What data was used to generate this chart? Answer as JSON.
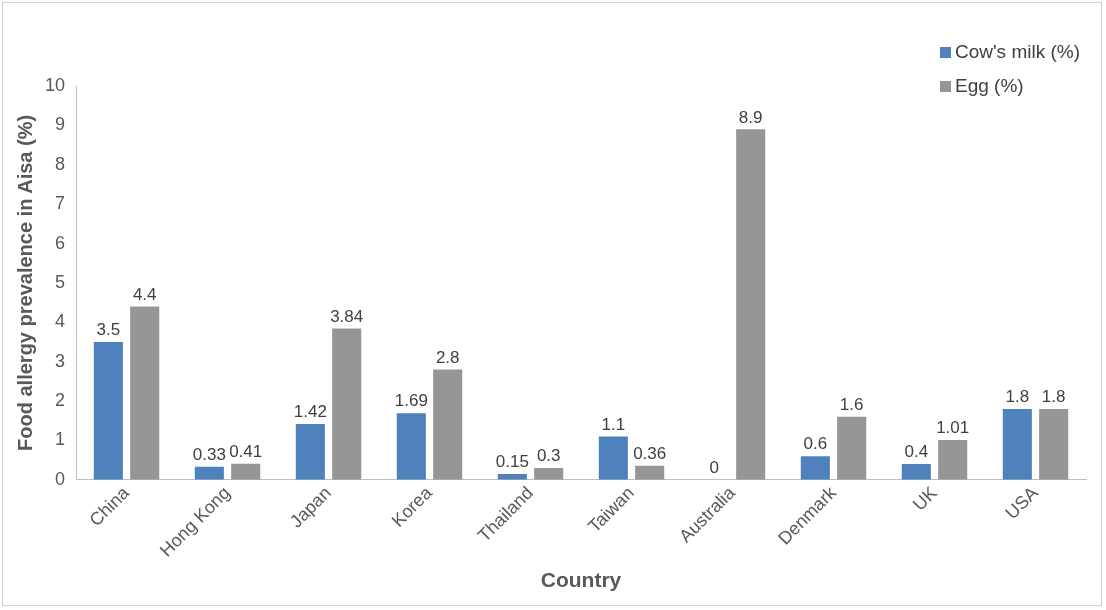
{
  "chart_data": {
    "type": "bar",
    "xlabel": "Country",
    "ylabel": "Food allergy prevalence in Aisa (%)",
    "categories": [
      "China",
      "Hong Kong",
      "Japan",
      "Korea",
      "Thailand",
      "Taiwan",
      "Australia",
      "Denmark",
      "UK",
      "USA"
    ],
    "series": [
      {
        "name": "Cow's milk (%)",
        "color": "#4f81bd",
        "values": [
          3.5,
          0.33,
          1.42,
          1.69,
          0.15,
          1.1,
          0,
          0.6,
          0.4,
          1.8
        ]
      },
      {
        "name": "Egg (%)",
        "color": "#969696",
        "values": [
          4.4,
          0.41,
          3.84,
          2.8,
          0.3,
          0.36,
          8.9,
          1.6,
          1.01,
          1.8
        ]
      }
    ],
    "ylim": [
      0,
      10
    ],
    "yticks": [
      0,
      1,
      2,
      3,
      4,
      5,
      6,
      7,
      8,
      9,
      10
    ],
    "grid": false,
    "legend": "top right",
    "data_labels": true
  }
}
